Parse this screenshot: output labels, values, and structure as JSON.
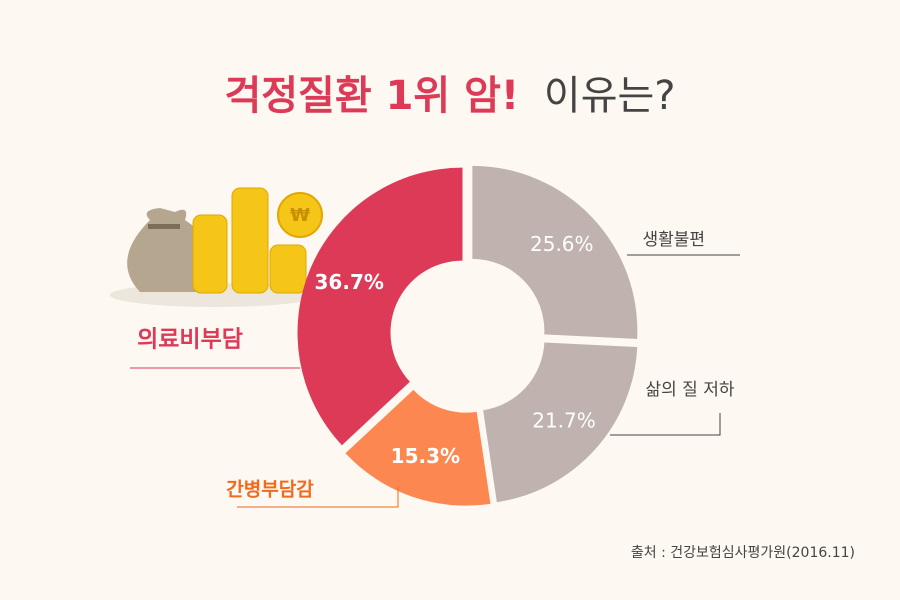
{
  "chart_data": {
    "type": "donut",
    "title_highlight": "걱정질환 1위 암!",
    "title_rest": "이유는?",
    "categories": [
      "생활불편",
      "삶의 질 저하",
      "간병부담감",
      "의료비부담"
    ],
    "values": [
      25.6,
      21.7,
      15.3,
      36.7
    ],
    "value_labels": [
      "25.6%",
      "21.7%",
      "15.3%",
      "36.7%"
    ],
    "colors": [
      "#bfb2af",
      "#bfb2af",
      "#fd8750",
      "#dc3a57"
    ],
    "source": "출처 : 건강보험심사평가원(2016.11)"
  }
}
